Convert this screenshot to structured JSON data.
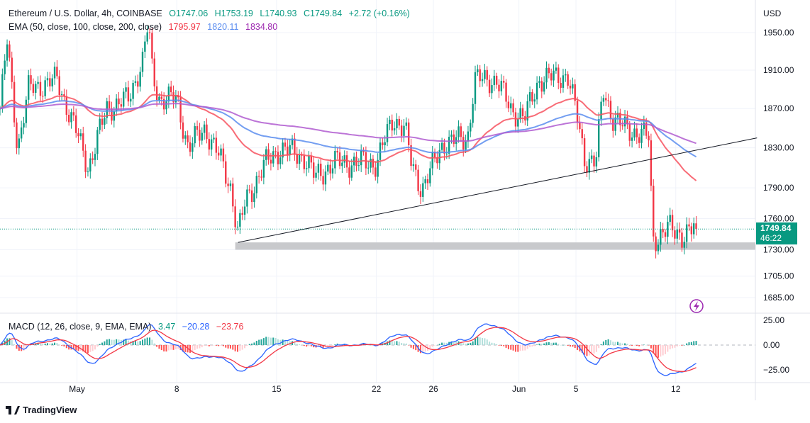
{
  "header": {
    "symbol": "Ethereum / U.S. Dollar, 4h, COINBASE",
    "open": "O1747.06",
    "high": "H1753.19",
    "low": "L1740.93",
    "close": "C1749.84",
    "change": "+2.72 (+0.16%)"
  },
  "ema_legend": {
    "label": "EMA (50, close, 100, close, 200, close)",
    "v50": "1795.97",
    "v100": "1820.11",
    "v200": "1834.80"
  },
  "macd_legend": {
    "label": "MACD (12, 26, close, 9, EMA, EMA)",
    "hist": "3.47",
    "macd": "−20.28",
    "signal": "−23.76"
  },
  "currency": "USD",
  "last_price": {
    "price": "1749.84",
    "countdown": "46:22"
  },
  "brand": "TradingView",
  "colors": {
    "up": "#089981",
    "down": "#f23645",
    "ema50": "#f7525f",
    "ema100": "#5b8def",
    "ema200": "#b05cd0",
    "macd": "#2962ff",
    "signal": "#f23645"
  },
  "chart_data": {
    "type": "candlestick",
    "title": "Ethereum / U.S. Dollar, 4h, COINBASE",
    "candles_per_day": 6,
    "price_path_note": "approximate close path [day offset, price]",
    "price_path": [
      [
        0,
        1870
      ],
      [
        0.5,
        1940
      ],
      [
        1.24,
        1830
      ],
      [
        2,
        1890
      ],
      [
        4,
        1900
      ],
      [
        5.5,
        1840
      ],
      [
        6.2,
        1810
      ],
      [
        7.5,
        1870
      ],
      [
        9,
        1880
      ],
      [
        10,
        1920
      ],
      [
        10.4,
        1960
      ],
      [
        10.7,
        1905
      ],
      [
        11.2,
        1880
      ],
      [
        12.4,
        1880
      ],
      [
        13.2,
        1830
      ],
      [
        14.4,
        1850
      ],
      [
        15.4,
        1820
      ],
      [
        16.2,
        1790
      ],
      [
        16.7,
        1745
      ],
      [
        17.2,
        1775
      ],
      [
        18.4,
        1810
      ],
      [
        19.7,
        1830
      ],
      [
        21.4,
        1820
      ],
      [
        22.1,
        1800
      ],
      [
        23.4,
        1815
      ],
      [
        26.4,
        1815
      ],
      [
        27.6,
        1860
      ],
      [
        28.4,
        1850
      ],
      [
        28.9,
        1810
      ],
      [
        29.6,
        1790
      ],
      [
        30.3,
        1810
      ],
      [
        31.1,
        1835
      ],
      [
        32.8,
        1840
      ],
      [
        33.3,
        1900
      ],
      [
        34.8,
        1900
      ],
      [
        35.8,
        1870
      ],
      [
        36.8,
        1860
      ],
      [
        37.8,
        1900
      ],
      [
        39.8,
        1905
      ],
      [
        40.5,
        1860
      ],
      [
        41,
        1820
      ],
      [
        41.8,
        1815
      ],
      [
        42.3,
        1890
      ],
      [
        43,
        1860
      ],
      [
        43.8,
        1850
      ],
      [
        44.8,
        1845
      ],
      [
        45.5,
        1840
      ],
      [
        45.8,
        1740
      ],
      [
        46.8,
        1750
      ],
      [
        47.8,
        1745
      ],
      [
        48.8,
        1749.84
      ]
    ],
    "y_ticks": [
      1950,
      1910,
      1870,
      1830,
      1790,
      1760,
      1730,
      1705,
      1685
    ],
    "y_tick_labels": [
      "1950.00",
      "1910.00",
      "1870.00",
      "1830.00",
      "1790.00",
      "1760.00",
      "1730.00",
      "1705.00",
      "1685.00"
    ],
    "macd_ticks": [
      "25.00",
      "0.00",
      "−25.00"
    ],
    "macd_tick_values": [
      25,
      0,
      -25
    ],
    "x_ticks": [
      {
        "label": "May",
        "day": 5.4
      },
      {
        "label": "8",
        "day": 12.4
      },
      {
        "label": "15",
        "day": 19.4
      },
      {
        "label": "22",
        "day": 26.4
      },
      {
        "label": "26",
        "day": 30.4
      },
      {
        "label": "Jun",
        "day": 36.4
      },
      {
        "label": "5",
        "day": 40.4
      },
      {
        "label": "12",
        "day": 47.4
      }
    ],
    "trendline": {
      "from": [
        16.7,
        1737
      ],
      "to": [
        53.1,
        1840
      ]
    },
    "support_zone": {
      "from_day": 16.5,
      "low": 1730,
      "high": 1737
    },
    "ema_periods": [
      50,
      100,
      200
    ],
    "macd_params": [
      12,
      26,
      9
    ]
  }
}
